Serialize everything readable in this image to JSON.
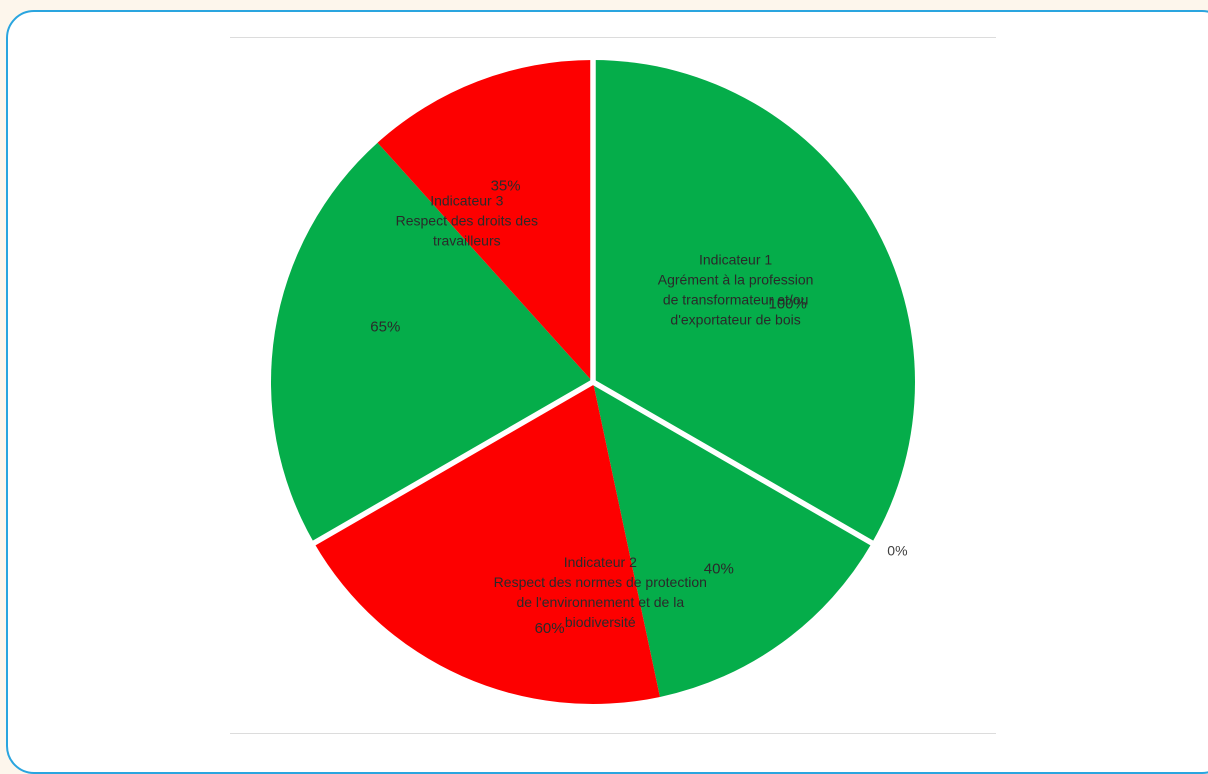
{
  "chart_data": {
    "type": "pie",
    "colors": {
      "compliant": "#05ad4a",
      "non_compliant": "#fd0000",
      "separator": "#ffffff"
    },
    "categories": [
      {
        "name_lines": [
          "Indicateur 1",
          "Agrément à la profession",
          "de transformateur et/ou",
          "d'exportateur de bois"
        ],
        "segments": [
          {
            "label": "100%",
            "value": 100,
            "status": "compliant"
          },
          {
            "label": "0%",
            "value": 0,
            "status": "non_compliant"
          }
        ]
      },
      {
        "name_lines": [
          "Indicateur 2",
          "Respect des normes de protection",
          "de l'environnement et de la",
          "biodiversité"
        ],
        "segments": [
          {
            "label": "40%",
            "value": 40,
            "status": "compliant"
          },
          {
            "label": "60%",
            "value": 60,
            "status": "non_compliant"
          }
        ]
      },
      {
        "name_lines": [
          "Indicateur 3",
          "Respect des droits des",
          "travailleurs"
        ],
        "segments": [
          {
            "label": "65%",
            "value": 65,
            "status": "compliant"
          },
          {
            "label": "35%",
            "value": 35,
            "status": "non_compliant"
          }
        ]
      }
    ]
  }
}
